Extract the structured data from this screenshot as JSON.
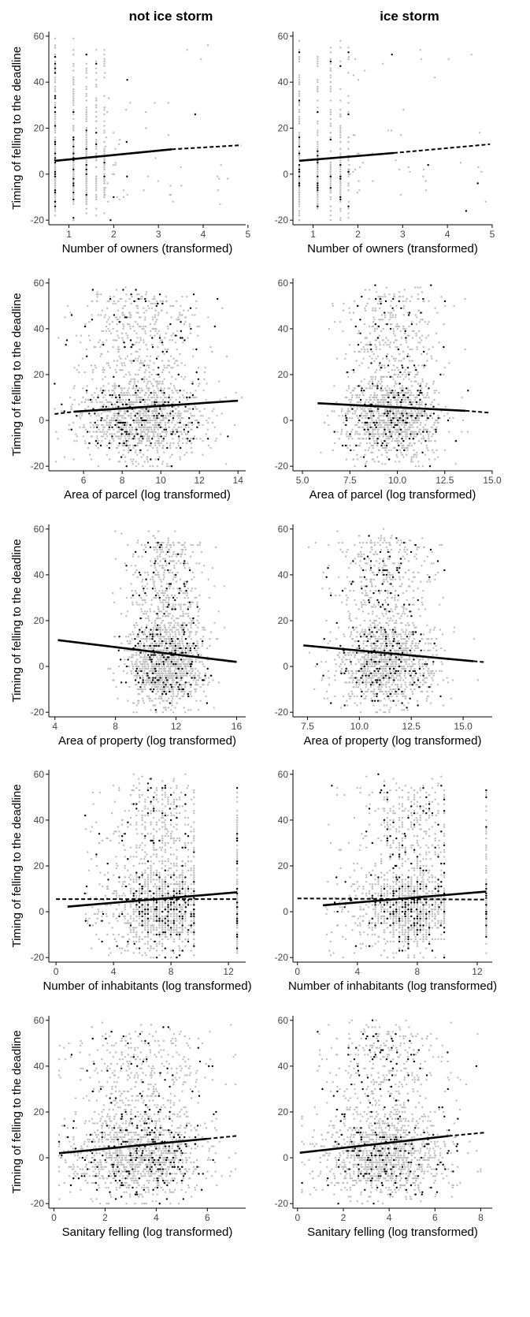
{
  "figure": {
    "columns": [
      "not ice storm",
      "ice storm"
    ]
  },
  "chart_data": [
    {
      "type": "scatter",
      "panel": "row1-not-ice-storm",
      "column_title": "not ice storm",
      "xlabel": "Number of owners (transformed)",
      "ylabel": "Timing of felling to the deadline",
      "xlim": [
        0.55,
        4.95
      ],
      "ylim": [
        -22,
        62
      ],
      "xticks": [
        1,
        2,
        3,
        4,
        5
      ],
      "xtick_labels": [
        "1",
        "2",
        "3",
        "4",
        "5"
      ],
      "yticks": [
        -20,
        0,
        20,
        40,
        60
      ],
      "grid": false,
      "scatter": {
        "pattern": "discrete",
        "x_levels": [
          0.69,
          1.1,
          1.39,
          1.61,
          1.79
        ],
        "level_weights": [
          1.0,
          0.8,
          0.7,
          0.45,
          0.3
        ],
        "sparse_range": [
          1.8,
          4.6
        ],
        "n_gray": 600,
        "n_black": 60
      },
      "fit": {
        "solid": [
          [
            0.69,
            5.8
          ],
          [
            3.3,
            10.8
          ]
        ],
        "dashed": [
          [
            3.3,
            10.8
          ],
          [
            4.85,
            12.6
          ]
        ]
      }
    },
    {
      "type": "scatter",
      "panel": "row1-ice-storm",
      "column_title": "ice storm",
      "xlabel": "Number of owners (transformed)",
      "ylabel": "",
      "xlim": [
        0.55,
        5.0
      ],
      "ylim": [
        -22,
        62
      ],
      "xticks": [
        1,
        2,
        3,
        4,
        5
      ],
      "xtick_labels": [
        "1",
        "2",
        "3",
        "4",
        "5"
      ],
      "yticks": [
        -20,
        0,
        20,
        40,
        60
      ],
      "grid": false,
      "scatter": {
        "pattern": "discrete",
        "x_levels": [
          0.69,
          1.1,
          1.39,
          1.61,
          1.79
        ],
        "level_weights": [
          1.0,
          0.7,
          0.55,
          0.35,
          0.25
        ],
        "sparse_range": [
          1.8,
          4.9
        ],
        "n_gray": 450,
        "n_black": 45
      },
      "fit": {
        "solid": [
          [
            0.69,
            5.8
          ],
          [
            2.8,
            9.2
          ]
        ],
        "dashed": [
          [
            2.8,
            9.2
          ],
          [
            4.95,
            13.0
          ]
        ]
      }
    },
    {
      "type": "scatter",
      "panel": "row2-not-ice-storm",
      "xlabel": "Area of parcel (log transformed)",
      "ylabel": "Timing of felling to the deadline",
      "xlim": [
        4.2,
        14.4
      ],
      "ylim": [
        -22,
        62
      ],
      "xticks": [
        6,
        8,
        10,
        12,
        14
      ],
      "xtick_labels": [
        "6",
        "8",
        "10",
        "12",
        "14"
      ],
      "yticks": [
        -20,
        0,
        20,
        40,
        60
      ],
      "grid": false,
      "scatter": {
        "pattern": "cloud",
        "x_mean": 9.0,
        "x_sd": 1.6,
        "x_range": [
          4.5,
          14.2
        ],
        "n_gray": 1500,
        "n_black": 220
      },
      "fit": {
        "solid": [
          [
            5.5,
            3.8
          ],
          [
            14.0,
            8.6
          ]
        ],
        "dashed": [
          [
            4.5,
            2.8
          ],
          [
            5.5,
            3.8
          ]
        ]
      }
    },
    {
      "type": "scatter",
      "panel": "row2-ice-storm",
      "xlabel": "Area of parcel (log transformed)",
      "ylabel": "",
      "xlim": [
        4.5,
        15.0
      ],
      "ylim": [
        -22,
        62
      ],
      "xticks": [
        5.0,
        7.5,
        10.0,
        12.5,
        15.0
      ],
      "xtick_labels": [
        "5.0",
        "7.5",
        "10.0",
        "12.5",
        "15.0"
      ],
      "yticks": [
        -20,
        0,
        20,
        40,
        60
      ],
      "grid": false,
      "scatter": {
        "pattern": "cloud",
        "x_mean": 9.7,
        "x_sd": 1.3,
        "x_range": [
          5.5,
          14.5
        ],
        "n_gray": 1400,
        "n_black": 200
      },
      "fit": {
        "solid": [
          [
            5.8,
            7.5
          ],
          [
            13.6,
            4.2
          ]
        ],
        "dashed": [
          [
            13.6,
            4.2
          ],
          [
            14.8,
            3.4
          ]
        ]
      }
    },
    {
      "type": "scatter",
      "panel": "row3-not-ice-storm",
      "xlabel": "Area of property (log transformed)",
      "ylabel": "Timing of felling to the deadline",
      "xlim": [
        3.6,
        16.6
      ],
      "ylim": [
        -22,
        62
      ],
      "xticks": [
        4,
        8,
        12,
        16
      ],
      "xtick_labels": [
        "4",
        "8",
        "12",
        "16"
      ],
      "yticks": [
        -20,
        0,
        20,
        40,
        60
      ],
      "grid": false,
      "scatter": {
        "pattern": "cloud",
        "x_mean": 11.3,
        "x_sd": 1.3,
        "x_range": [
          4.2,
          16.2
        ],
        "n_gray": 1500,
        "n_black": 220
      },
      "fit": {
        "solid": [
          [
            4.2,
            11.5
          ],
          [
            16.0,
            2.0
          ]
        ],
        "dashed": []
      }
    },
    {
      "type": "scatter",
      "panel": "row3-ice-storm",
      "xlabel": "Area of property (log transformed)",
      "ylabel": "",
      "xlim": [
        6.8,
        16.4
      ],
      "ylim": [
        -22,
        62
      ],
      "xticks": [
        7.5,
        10.0,
        12.5,
        15.0
      ],
      "xtick_labels": [
        "7.5",
        "10.0",
        "12.5",
        "15.0"
      ],
      "yticks": [
        -20,
        0,
        20,
        40,
        60
      ],
      "grid": false,
      "scatter": {
        "pattern": "cloud",
        "x_mean": 11.2,
        "x_sd": 1.2,
        "x_range": [
          7.2,
          16.1
        ],
        "n_gray": 1400,
        "n_black": 210
      },
      "fit": {
        "solid": [
          [
            7.3,
            9.2
          ],
          [
            15.5,
            2.3
          ]
        ],
        "dashed": [
          [
            15.5,
            2.3
          ],
          [
            16.0,
            1.9
          ]
        ]
      }
    },
    {
      "type": "scatter",
      "panel": "row4-not-ice-storm",
      "xlabel": "Number of inhabitants (log transformed)",
      "ylabel": "Timing of felling to the deadline",
      "xlim": [
        -0.5,
        13.2
      ],
      "ylim": [
        -22,
        62
      ],
      "xticks": [
        0,
        4,
        8,
        12
      ],
      "xtick_labels": [
        "0",
        "4",
        "8",
        "12"
      ],
      "yticks": [
        -20,
        0,
        20,
        40,
        60
      ],
      "grid": false,
      "scatter": {
        "pattern": "stripes",
        "x_mean": 7.3,
        "x_sd": 1.6,
        "x_range": [
          2.0,
          9.6
        ],
        "edge_x": 12.6,
        "n_gray": 1500,
        "n_black": 220
      },
      "fit": {
        "solid": [
          [
            0.8,
            2.2
          ],
          [
            12.6,
            8.5
          ]
        ],
        "dashed": [
          [
            0.0,
            5.5
          ],
          [
            12.6,
            5.5
          ]
        ]
      }
    },
    {
      "type": "scatter",
      "panel": "row4-ice-storm",
      "xlabel": "Number of inhabitants (log transformed)",
      "ylabel": "",
      "xlim": [
        -0.3,
        13.0
      ],
      "ylim": [
        -22,
        62
      ],
      "xticks": [
        0,
        4,
        8,
        12
      ],
      "xtick_labels": [
        "0",
        "4",
        "8",
        "12"
      ],
      "yticks": [
        -20,
        0,
        20,
        40,
        60
      ],
      "grid": false,
      "scatter": {
        "pattern": "stripes",
        "x_mean": 7.4,
        "x_sd": 1.5,
        "x_range": [
          1.8,
          9.8
        ],
        "edge_x": 12.6,
        "n_gray": 1400,
        "n_black": 210
      },
      "fit": {
        "solid": [
          [
            1.7,
            2.8
          ],
          [
            12.6,
            8.8
          ]
        ],
        "dashed": [
          [
            0.0,
            5.8
          ],
          [
            12.6,
            5.3
          ]
        ]
      }
    },
    {
      "type": "scatter",
      "panel": "row5-not-ice-storm",
      "xlabel": "Sanitary felling (log transformed)",
      "ylabel": "Timing of felling to the deadline",
      "xlim": [
        -0.2,
        7.5
      ],
      "ylim": [
        -22,
        62
      ],
      "xticks": [
        0,
        2,
        4,
        6
      ],
      "xtick_labels": [
        "0",
        "2",
        "4",
        "6"
      ],
      "yticks": [
        -20,
        0,
        20,
        40,
        60
      ],
      "grid": false,
      "scatter": {
        "pattern": "cloud",
        "x_mean": 3.3,
        "x_sd": 1.3,
        "x_range": [
          0.2,
          7.1
        ],
        "n_gray": 1500,
        "n_black": 240
      },
      "fit": {
        "solid": [
          [
            0.2,
            2.0
          ],
          [
            6.0,
            8.3
          ]
        ],
        "dashed": [
          [
            6.0,
            8.3
          ],
          [
            7.2,
            9.6
          ]
        ]
      }
    },
    {
      "type": "scatter",
      "panel": "row5-ice-storm",
      "xlabel": "Sanitary felling (log transformed)",
      "ylabel": "",
      "xlim": [
        -0.2,
        8.5
      ],
      "ylim": [
        -22,
        62
      ],
      "xticks": [
        0,
        2,
        4,
        6,
        8
      ],
      "xtick_labels": [
        "0",
        "2",
        "4",
        "6",
        "8"
      ],
      "yticks": [
        -20,
        0,
        20,
        40,
        60
      ],
      "grid": false,
      "scatter": {
        "pattern": "cloud",
        "x_mean": 3.8,
        "x_sd": 1.4,
        "x_range": [
          0.2,
          8.0
        ],
        "n_gray": 1400,
        "n_black": 220
      },
      "fit": {
        "solid": [
          [
            0.1,
            2.2
          ],
          [
            6.6,
            9.5
          ]
        ],
        "dashed": [
          [
            6.6,
            9.5
          ],
          [
            8.2,
            11.0
          ]
        ]
      }
    }
  ]
}
